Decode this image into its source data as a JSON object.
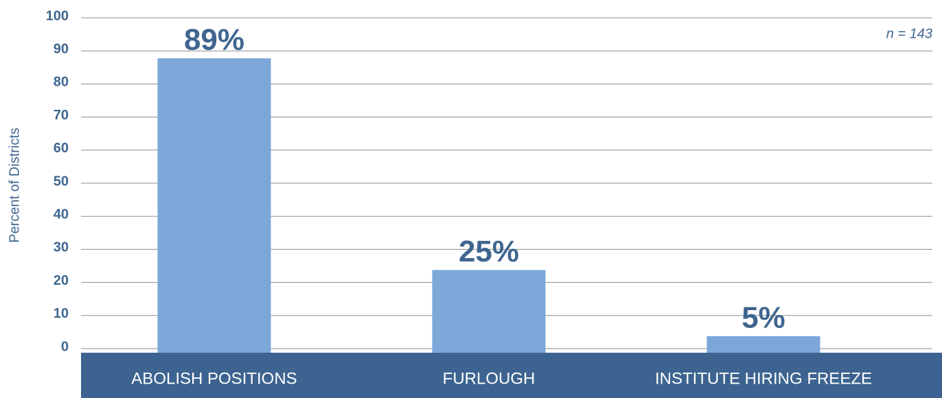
{
  "chart_data": {
    "type": "bar",
    "y_label": "Percent of Districts",
    "annotation": "n = 143",
    "categories": [
      "ABOLISH POSITIONS",
      "FURLOUGH",
      "INSTITUTE HIRING FREEZE"
    ],
    "values": [
      89,
      25,
      5
    ],
    "value_labels": [
      "89%",
      "25%",
      "5%"
    ],
    "color": "#7ba7d9",
    "ylim": [
      0,
      100
    ],
    "yticks": [
      0,
      10,
      20,
      30,
      40,
      50,
      60,
      70,
      80,
      90,
      100
    ],
    "grid": true
  }
}
